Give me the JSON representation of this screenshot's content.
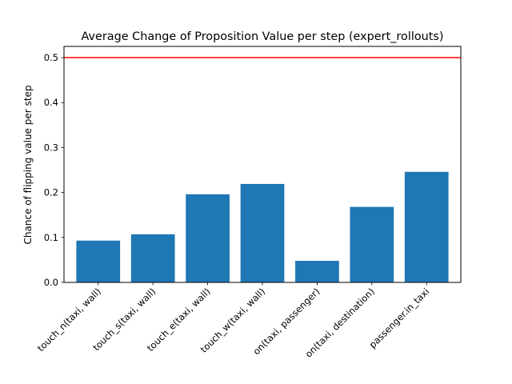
{
  "chart_data": {
    "type": "bar",
    "title": "Average Change of Proposition Value per step (expert_rollouts)",
    "xlabel": "",
    "ylabel": "Chance of flipping value per step",
    "categories": [
      "touch_n(taxi, wall)",
      "touch_s(taxi, wall)",
      "touch_e(taxi, wall)",
      "touch_w(taxi, wall)",
      "on(taxi, passenger)",
      "on(taxi, destination)",
      "passenger.in_taxi"
    ],
    "values": [
      0.093,
      0.107,
      0.196,
      0.219,
      0.048,
      0.168,
      0.246
    ],
    "ylim": [
      0,
      0.525
    ],
    "yticks": [
      0.0,
      0.1,
      0.2,
      0.3,
      0.4,
      0.5
    ],
    "ytick_labels": [
      "0.0",
      "0.1",
      "0.2",
      "0.3",
      "0.4",
      "0.5"
    ],
    "reference_line": {
      "y": 0.5,
      "color": "#ff0000"
    },
    "bar_color": "#1f77b4",
    "grid": false,
    "legend": "none"
  }
}
